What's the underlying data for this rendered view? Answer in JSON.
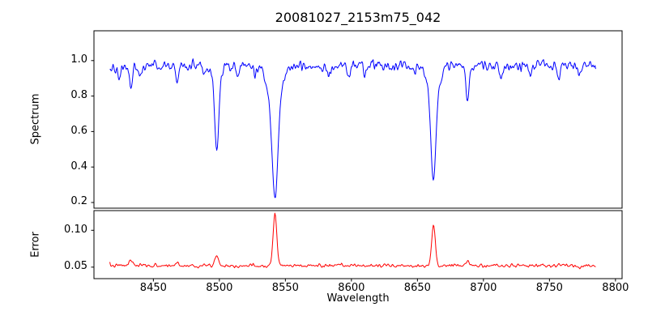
{
  "title": "20081027_2153m75_042",
  "axes": {
    "xlabel": "Wavelength"
  },
  "chart_data": {
    "type": "line",
    "title": "20081027_2153m75_042",
    "xlabel": "Wavelength",
    "xlim": [
      8405,
      8805
    ],
    "x_range": [
      8417,
      8785
    ],
    "x_step": 0.5,
    "xticks": [
      8450,
      8500,
      8550,
      8600,
      8650,
      8700,
      8750,
      8800
    ],
    "xtick_labels": [
      "8450",
      "8500",
      "8550",
      "8600",
      "8650",
      "8700",
      "8750",
      "8800"
    ],
    "grid": false,
    "legend": "none",
    "series": [
      {
        "name": "Spectrum",
        "ylabel": "Spectrum",
        "color": "#0000ff",
        "ylim": [
          0.168,
          1.168
        ],
        "yticks": [
          0.2,
          0.4,
          0.6,
          0.8,
          1.0
        ],
        "ytick_labels": [
          "0.2",
          "0.4",
          "0.6",
          "0.8",
          "1.0"
        ],
        "continuum": 0.97,
        "noise_sigma": 0.022,
        "noise_seed": 42,
        "absorption_lines": [
          {
            "center": 8424.0,
            "depth": 0.1,
            "width": 1.0
          },
          {
            "center": 8433.0,
            "depth": 0.13,
            "width": 1.2
          },
          {
            "center": 8440.0,
            "depth": 0.06,
            "width": 1.0
          },
          {
            "center": 8468.0,
            "depth": 0.1,
            "width": 1.0
          },
          {
            "center": 8489.0,
            "depth": 0.05,
            "width": 1.0
          },
          {
            "center": 8498.0,
            "depth": 0.42,
            "width": 1.5
          },
          {
            "center": 8498.0,
            "depth": 0.08,
            "width": 3.2
          },
          {
            "center": 8514.0,
            "depth": 0.07,
            "width": 1.0
          },
          {
            "center": 8527.0,
            "depth": 0.05,
            "width": 1.0
          },
          {
            "center": 8542.1,
            "depth": 0.5,
            "width": 2.0
          },
          {
            "center": 8542.1,
            "depth": 0.27,
            "width": 4.5
          },
          {
            "center": 8583.0,
            "depth": 0.06,
            "width": 1.0
          },
          {
            "center": 8598.0,
            "depth": 0.05,
            "width": 1.0
          },
          {
            "center": 8611.0,
            "depth": 0.05,
            "width": 1.0
          },
          {
            "center": 8648.0,
            "depth": 0.05,
            "width": 1.0
          },
          {
            "center": 8662.1,
            "depth": 0.45,
            "width": 1.8
          },
          {
            "center": 8662.1,
            "depth": 0.21,
            "width": 3.8
          },
          {
            "center": 8688.0,
            "depth": 0.19,
            "width": 1.3
          },
          {
            "center": 8713.0,
            "depth": 0.07,
            "width": 1.0
          },
          {
            "center": 8736.0,
            "depth": 0.06,
            "width": 1.0
          },
          {
            "center": 8757.0,
            "depth": 0.08,
            "width": 1.0
          },
          {
            "center": 8773.0,
            "depth": 0.06,
            "width": 1.0
          }
        ]
      },
      {
        "name": "Error",
        "ylabel": "Error",
        "color": "#ff0000",
        "ylim": [
          0.0344,
          0.1267
        ],
        "yticks": [
          0.05,
          0.1
        ],
        "ytick_labels": [
          "0.05",
          "0.10"
        ],
        "baseline": 0.052,
        "noise_sigma": 0.0018,
        "noise_seed": 7,
        "peaks": [
          {
            "center": 8433.0,
            "height": 0.007,
            "width": 1.4
          },
          {
            "center": 8468.0,
            "height": 0.004,
            "width": 1.2
          },
          {
            "center": 8498.0,
            "height": 0.013,
            "width": 1.6
          },
          {
            "center": 8542.1,
            "height": 0.072,
            "width": 1.4
          },
          {
            "center": 8662.1,
            "height": 0.054,
            "width": 1.4
          },
          {
            "center": 8688.0,
            "height": 0.006,
            "width": 1.3
          }
        ]
      }
    ]
  }
}
